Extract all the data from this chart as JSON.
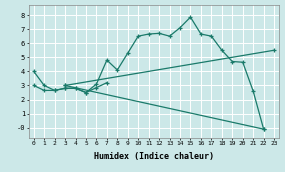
{
  "xlabel": "Humidex (Indice chaleur)",
  "bg_color": "#cce8e8",
  "grid_color": "#ffffff",
  "line_color": "#1a7a6a",
  "xlim": [
    -0.5,
    23.5
  ],
  "ylim": [
    -0.7,
    8.7
  ],
  "xticks": [
    0,
    1,
    2,
    3,
    4,
    5,
    6,
    7,
    8,
    9,
    10,
    11,
    12,
    13,
    14,
    15,
    16,
    17,
    18,
    19,
    20,
    21,
    22,
    23
  ],
  "yticks": [
    0,
    1,
    2,
    3,
    4,
    5,
    6,
    7,
    8
  ],
  "ytick_labels": [
    "-0",
    "1",
    "2",
    "3",
    "4",
    "5",
    "6",
    "7",
    "8"
  ],
  "series": [
    {
      "x": [
        0,
        1,
        2,
        3,
        4,
        5,
        6,
        7,
        8,
        9,
        10,
        11,
        12,
        13,
        14,
        15,
        16,
        17,
        18,
        19,
        20,
        21,
        22
      ],
      "y": [
        4.0,
        3.0,
        2.65,
        2.8,
        2.8,
        2.5,
        3.1,
        4.8,
        4.1,
        5.3,
        6.5,
        6.65,
        6.7,
        6.5,
        7.1,
        7.85,
        6.65,
        6.5,
        5.5,
        4.7,
        4.65,
        2.6,
        -0.1
      ]
    },
    {
      "x": [
        0,
        1,
        2,
        3,
        4,
        5,
        6,
        7
      ],
      "y": [
        3.0,
        2.65,
        2.65,
        2.8,
        2.8,
        2.5,
        2.85,
        3.2
      ]
    },
    {
      "x": [
        3,
        23
      ],
      "y": [
        3.0,
        5.5
      ]
    },
    {
      "x": [
        3,
        22
      ],
      "y": [
        3.0,
        -0.1
      ]
    }
  ]
}
